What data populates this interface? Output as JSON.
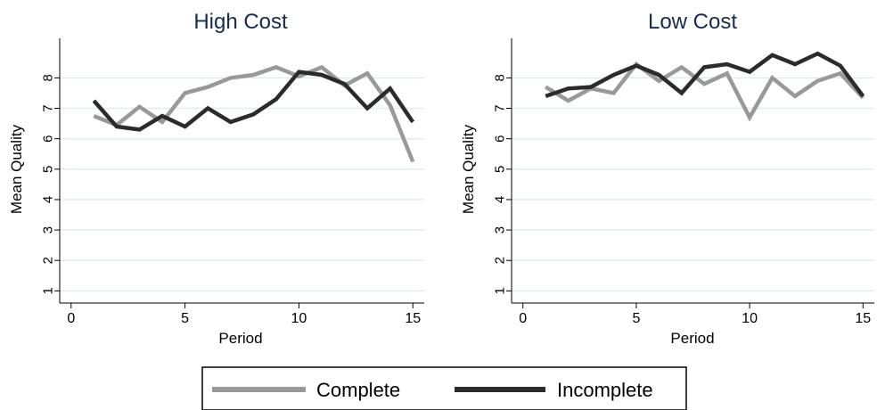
{
  "chart_data": [
    {
      "type": "line",
      "title": "High Cost",
      "xlabel": "Period",
      "ylabel": "Mean Quality",
      "xlim": [
        -0.5,
        15.5
      ],
      "ylim": [
        0.6,
        9.3
      ],
      "xticks": [
        0,
        5,
        10,
        15
      ],
      "yticks": [
        1,
        2,
        3,
        4,
        5,
        6,
        7,
        8
      ],
      "grid": true,
      "series": [
        {
          "name": "Complete",
          "color": "#999999",
          "x": [
            1,
            2,
            3,
            4,
            5,
            6,
            7,
            8,
            9,
            10,
            11,
            12,
            13,
            14,
            15
          ],
          "values": [
            6.75,
            6.45,
            7.05,
            6.55,
            7.5,
            7.7,
            8.0,
            8.1,
            8.35,
            8.05,
            8.35,
            7.75,
            8.15,
            7.1,
            5.25
          ]
        },
        {
          "name": "Incomplete",
          "color": "#2b2b2b",
          "x": [
            1,
            2,
            3,
            4,
            5,
            6,
            7,
            8,
            9,
            10,
            11,
            12,
            13,
            14,
            15
          ],
          "values": [
            7.25,
            6.4,
            6.3,
            6.75,
            6.4,
            7.0,
            6.55,
            6.8,
            7.3,
            8.2,
            8.1,
            7.8,
            7.0,
            7.65,
            6.55
          ]
        }
      ]
    },
    {
      "type": "line",
      "title": "Low Cost",
      "xlabel": "Period",
      "ylabel": "Mean Quality",
      "xlim": [
        -0.5,
        15.5
      ],
      "ylim": [
        0.6,
        9.3
      ],
      "xticks": [
        0,
        5,
        10,
        15
      ],
      "yticks": [
        1,
        2,
        3,
        4,
        5,
        6,
        7,
        8
      ],
      "grid": true,
      "series": [
        {
          "name": "Complete",
          "color": "#999999",
          "x": [
            1,
            2,
            3,
            4,
            5,
            6,
            7,
            8,
            9,
            10,
            11,
            12,
            13,
            14,
            15
          ],
          "values": [
            7.7,
            7.25,
            7.65,
            7.5,
            8.45,
            7.9,
            8.35,
            7.8,
            8.15,
            6.7,
            8.0,
            7.4,
            7.9,
            8.15,
            7.35
          ]
        },
        {
          "name": "Incomplete",
          "color": "#2b2b2b",
          "x": [
            1,
            2,
            3,
            4,
            5,
            6,
            7,
            8,
            9,
            10,
            11,
            12,
            13,
            14,
            15
          ],
          "values": [
            7.4,
            7.65,
            7.7,
            8.1,
            8.4,
            8.1,
            7.5,
            8.35,
            8.45,
            8.2,
            8.75,
            8.45,
            8.8,
            8.4,
            7.4
          ]
        }
      ]
    }
  ],
  "legend": {
    "items": [
      {
        "label": "Complete",
        "color": "#999999"
      },
      {
        "label": "Incomplete",
        "color": "#2b2b2b"
      }
    ]
  }
}
